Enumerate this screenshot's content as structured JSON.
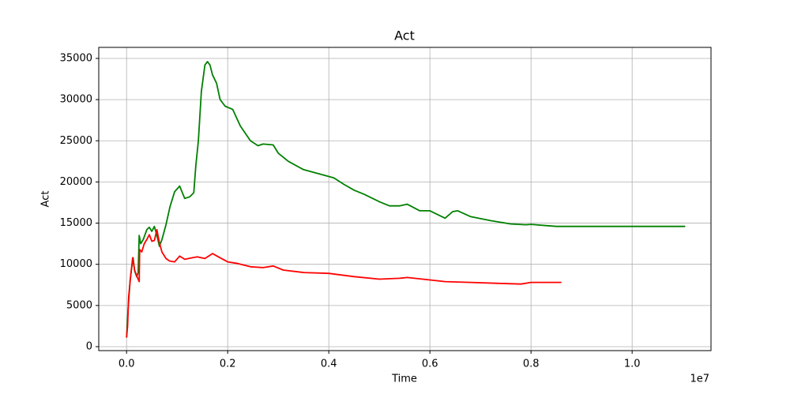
{
  "chart_data": {
    "type": "line",
    "title": "Act",
    "x_label": "Time",
    "y_label": "Act",
    "x_offset_label": "1e7",
    "xlim": [
      -550000,
      11560000
    ],
    "ylim": [
      -480,
      36340
    ],
    "grid": true,
    "xticks": [
      {
        "value": 0,
        "label": "0.0"
      },
      {
        "value": 2000000,
        "label": "0.2"
      },
      {
        "value": 4000000,
        "label": "0.4"
      },
      {
        "value": 6000000,
        "label": "0.6"
      },
      {
        "value": 8000000,
        "label": "0.8"
      },
      {
        "value": 10000000,
        "label": "1.0"
      }
    ],
    "yticks": [
      0,
      5000,
      10000,
      15000,
      20000,
      25000,
      30000,
      35000
    ],
    "series": [
      {
        "color": "#008000",
        "x": [
          0,
          30000,
          70000,
          100000,
          130000,
          160000,
          200000,
          230000,
          250000,
          280000,
          330000,
          400000,
          450000,
          500000,
          550000,
          600000,
          650000,
          700000,
          780000,
          860000,
          950000,
          1050000,
          1150000,
          1250000,
          1330000,
          1370000,
          1420000,
          1480000,
          1550000,
          1600000,
          1650000,
          1700000,
          1780000,
          1850000,
          1950000,
          2100000,
          2250000,
          2450000,
          2600000,
          2700000,
          2900000,
          3000000,
          3200000,
          3500000,
          3800000,
          4100000,
          4300000,
          4500000,
          4700000,
          5000000,
          5200000,
          5400000,
          5550000,
          5800000,
          6000000,
          6300000,
          6450000,
          6550000,
          6800000,
          7200000,
          7600000,
          7900000,
          8000000,
          8300000,
          8500000,
          11050000
        ],
        "values": [
          1100,
          4500,
          8000,
          9500,
          10800,
          9200,
          8500,
          9000,
          13500,
          12500,
          13000,
          14200,
          14500,
          14000,
          14600,
          13500,
          12200,
          13000,
          14800,
          17000,
          18800,
          19500,
          18000,
          18200,
          18700,
          22000,
          25000,
          31000,
          34200,
          34600,
          34200,
          33000,
          32000,
          30000,
          29200,
          28800,
          26800,
          25000,
          24400,
          24600,
          24500,
          23500,
          22500,
          21500,
          21000,
          20500,
          19700,
          19000,
          18500,
          17600,
          17100,
          17100,
          17300,
          16500,
          16500,
          15600,
          16400,
          16500,
          15800,
          15300,
          14900,
          14800,
          14850,
          14700,
          14600,
          14600
        ]
      },
      {
        "color": "#ff0000",
        "x": [
          0,
          20000,
          40000,
          80000,
          120000,
          160000,
          200000,
          250000,
          260000,
          300000,
          350000,
          400000,
          450000,
          500000,
          550000,
          600000,
          650000,
          700000,
          780000,
          850000,
          950000,
          1050000,
          1150000,
          1300000,
          1400000,
          1550000,
          1700000,
          1850000,
          2000000,
          2200000,
          2450000,
          2700000,
          2900000,
          3100000,
          3500000,
          4000000,
          4500000,
          5000000,
          5400000,
          5550000,
          6000000,
          6300000,
          6800000,
          7300000,
          7800000,
          8000000,
          8600000
        ],
        "values": [
          1100,
          2500,
          6000,
          8500,
          10800,
          9300,
          8600,
          7900,
          11800,
          11500,
          12500,
          13000,
          13600,
          12800,
          12900,
          14200,
          12600,
          11500,
          10700,
          10400,
          10300,
          11000,
          10600,
          10800,
          10900,
          10700,
          11300,
          10800,
          10300,
          10100,
          9700,
          9600,
          9800,
          9300,
          9000,
          8900,
          8500,
          8200,
          8300,
          8400,
          8100,
          7900,
          7800,
          7700,
          7600,
          7800,
          7800
        ]
      }
    ]
  }
}
